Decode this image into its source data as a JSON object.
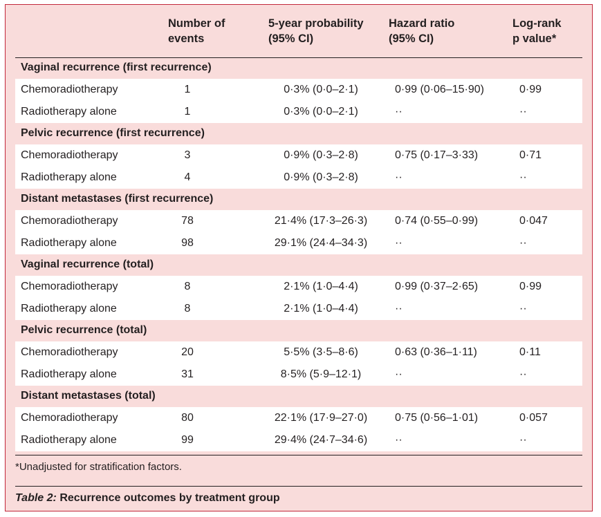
{
  "headers": {
    "events": "Number of\nevents",
    "probability": "5-year probability\n(95% CI)",
    "hazard": "Hazard ratio\n(95% CI)",
    "p": "Log-rank\np value*"
  },
  "sections": [
    {
      "title": "Vaginal recurrence (first recurrence)",
      "rows": [
        {
          "group": "Chemoradiotherapy",
          "events": "1",
          "prob": "0·3% (0·0–2·1)",
          "hr": "0·99 (0·06–15·90)",
          "p": "0·99"
        },
        {
          "group": "Radiotherapy alone",
          "events": "1",
          "prob": "0·3% (0·0–2·1)",
          "hr": "··",
          "p": "··"
        }
      ]
    },
    {
      "title": "Pelvic recurrence (first recurrence)",
      "rows": [
        {
          "group": "Chemoradiotherapy",
          "events": "3",
          "prob": "0·9% (0·3–2·8)",
          "hr": "0·75 (0·17–3·33)",
          "p": "0·71"
        },
        {
          "group": "Radiotherapy alone",
          "events": "4",
          "prob": "0·9% (0·3–2·8)",
          "hr": "··",
          "p": "··"
        }
      ]
    },
    {
      "title": "Distant metastases (first recurrence)",
      "rows": [
        {
          "group": "Chemoradiotherapy",
          "events": "78",
          "prob": "21·4% (17·3–26·3)",
          "hr": "0·74 (0·55–0·99)",
          "p": "0·047"
        },
        {
          "group": "Radiotherapy alone",
          "events": "98",
          "prob": "29·1% (24·4–34·3)",
          "hr": "··",
          "p": "··"
        }
      ]
    },
    {
      "title": "Vaginal recurrence (total)",
      "rows": [
        {
          "group": "Chemoradiotherapy",
          "events": "8",
          "prob": "2·1% (1·0–4·4)",
          "hr": "0·99 (0·37–2·65)",
          "p": "0·99"
        },
        {
          "group": "Radiotherapy alone",
          "events": "8",
          "prob": "2·1% (1·0–4·4)",
          "hr": "··",
          "p": "··"
        }
      ]
    },
    {
      "title": "Pelvic recurrence (total)",
      "rows": [
        {
          "group": "Chemoradiotherapy",
          "events": "20",
          "prob": "5·5% (3·5–8·6)",
          "hr": "0·63 (0·36–1·11)",
          "p": "0·11"
        },
        {
          "group": "Radiotherapy alone",
          "events": "31",
          "prob": "8·5% (5·9–12·1)",
          "hr": "··",
          "p": "··"
        }
      ]
    },
    {
      "title": "Distant metastases (total)",
      "rows": [
        {
          "group": "Chemoradiotherapy",
          "events": "80",
          "prob": "22·1% (17·9–27·0)",
          "hr": "0·75 (0·56–1·01)",
          "p": "0·057"
        },
        {
          "group": "Radiotherapy alone",
          "events": "99",
          "prob": "29·4% (24·7–34·6)",
          "hr": "··",
          "p": "··"
        }
      ]
    }
  ],
  "footnote": "*Unadjusted for stratification factors.",
  "caption": {
    "label": "Table 2:",
    "text": " Recurrence outcomes by treatment group"
  },
  "colors": {
    "background": "#f9dcdb",
    "border": "#c2273a",
    "row_band": "#ffffff",
    "text": "#231f20"
  }
}
